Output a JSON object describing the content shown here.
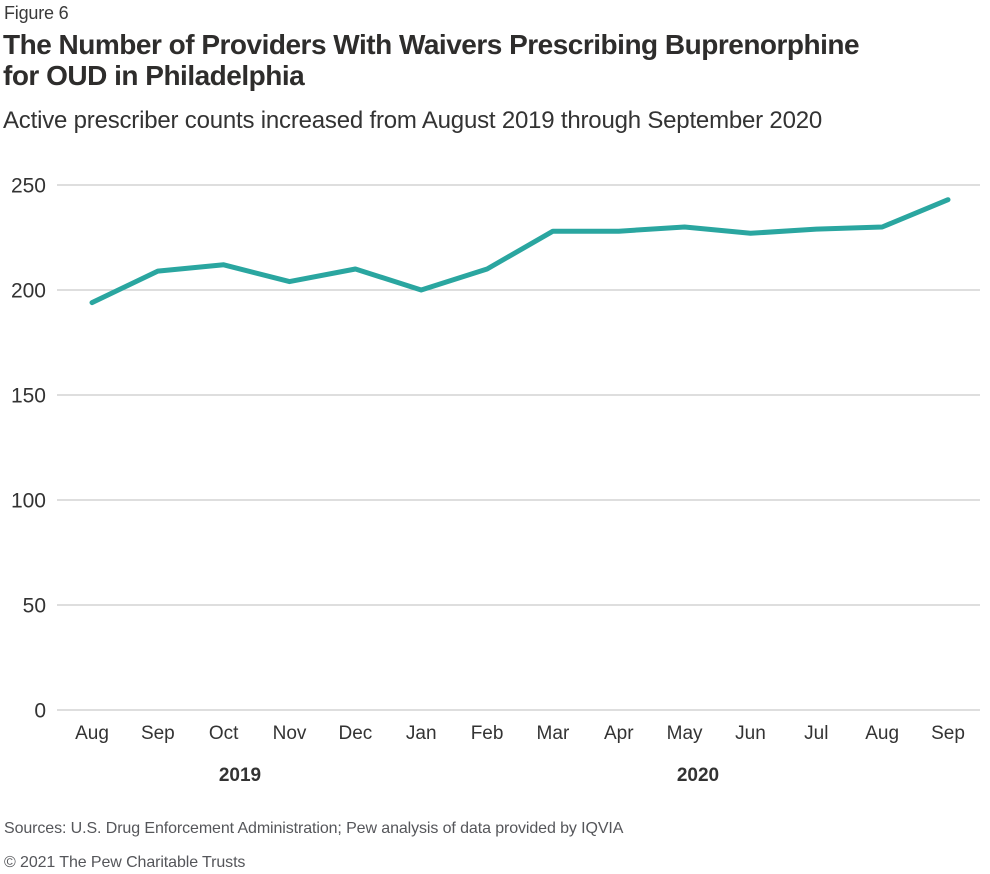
{
  "header": {
    "figure_label": "Figure 6",
    "title_lines": [
      "The Number of Providers With Waivers Prescribing Buprenorphine",
      "for OUD in Philadelphia"
    ],
    "subtitle": "Active prescriber counts increased from August 2019 through September 2020"
  },
  "chart_data": {
    "type": "line",
    "title": "The Number of Providers With Waivers Prescribing Buprenorphine for OUD in Philadelphia",
    "subtitle": "Active prescriber counts increased from August 2019 through September 2020",
    "categories": [
      "Aug",
      "Sep",
      "Oct",
      "Nov",
      "Dec",
      "Jan",
      "Feb",
      "Mar",
      "Apr",
      "May",
      "Jun",
      "Jul",
      "Aug",
      "Sep"
    ],
    "values": [
      194,
      209,
      212,
      204,
      210,
      200,
      210,
      228,
      228,
      230,
      227,
      229,
      230,
      243
    ],
    "year_labels": [
      "2019",
      "2020"
    ],
    "xlabel": "",
    "ylabel": "",
    "ylim": [
      0,
      250
    ],
    "yticks": [
      0,
      50,
      100,
      150,
      200,
      250
    ],
    "grid": "horizontal",
    "legend": "none",
    "line_color": "#2AA6A0"
  },
  "footer": {
    "sources": "Sources: U.S. Drug Enforcement Administration; Pew analysis of data provided by IQVIA",
    "copyright": "© 2021 The Pew Charitable Trusts"
  },
  "colors": {
    "accent_teal": "#2AA6A0",
    "gridline": "#CBCBCB",
    "title_text": "#2E2D2C",
    "axis_text": "#333333",
    "footer_text": "#55565A"
  }
}
